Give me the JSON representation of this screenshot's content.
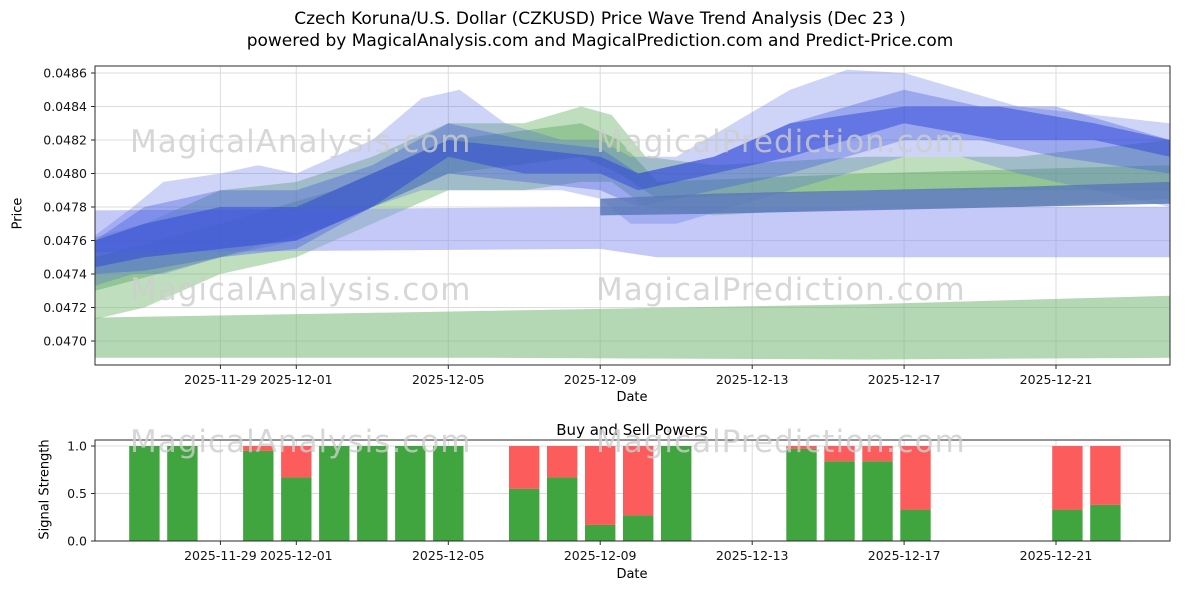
{
  "title": "Czech Koruna/U.S. Dollar (CZKUSD) Price Wave Trend Analysis (Dec 23 )",
  "subtitle": "powered by MagicalAnalysis.com and MagicalPrediction.com and Predict-Price.com",
  "watermarks": [
    "MagicalAnalysis.com",
    "MagicalPrediction.com"
  ],
  "colors": {
    "buy": "#41a53f",
    "sell": "#fd5c5c",
    "grid": "#dcdcdc",
    "frame": "#2a2a2a",
    "watermark": "#cdcdcd"
  },
  "chart_data": [
    {
      "type": "area",
      "title": "",
      "xlabel": "Date",
      "ylabel": "Price",
      "x_domain": [
        -0.3,
        28
      ],
      "ylim": [
        0.046857,
        0.048642
      ],
      "yticks": [
        {
          "v": 0.047,
          "label": "0.0470"
        },
        {
          "v": 0.0472,
          "label": "0.0472"
        },
        {
          "v": 0.0474,
          "label": "0.0474"
        },
        {
          "v": 0.0476,
          "label": "0.0476"
        },
        {
          "v": 0.0478,
          "label": "0.0478"
        },
        {
          "v": 0.048,
          "label": "0.0480"
        },
        {
          "v": 0.0482,
          "label": "0.0482"
        },
        {
          "v": 0.0484,
          "label": "0.0484"
        },
        {
          "v": 0.0486,
          "label": "0.0486"
        }
      ],
      "xticks": [
        {
          "day": 3,
          "label": "2025-11-29"
        },
        {
          "day": 5,
          "label": "2025-12-01"
        },
        {
          "day": 9,
          "label": "2025-12-05"
        },
        {
          "day": 13,
          "label": "2025-12-09"
        },
        {
          "day": 17,
          "label": "2025-12-13"
        },
        {
          "day": 21,
          "label": "2025-12-17"
        },
        {
          "day": 25,
          "label": "2025-12-21"
        }
      ],
      "bands": [
        {
          "name": "green-flat-low",
          "color": "#74b874",
          "opacity": 0.55,
          "points": [
            [
              -0.3,
              0.0469,
              0.04714
            ],
            [
              10,
              0.0469,
              0.04718
            ],
            [
              20,
              0.04689,
              0.04722
            ],
            [
              28,
              0.0469,
              0.04727
            ]
          ]
        },
        {
          "name": "green-trend-wide",
          "color": "#6fb56f",
          "opacity": 0.45,
          "points": [
            [
              -0.3,
              0.04713,
              0.04762
            ],
            [
              1,
              0.0472,
              0.0477
            ],
            [
              3,
              0.0474,
              0.0479
            ],
            [
              5,
              0.0475,
              0.04795
            ],
            [
              7,
              0.0477,
              0.0481
            ],
            [
              9,
              0.0479,
              0.0483
            ],
            [
              11,
              0.0479,
              0.0483
            ],
            [
              12.5,
              0.04795,
              0.0484
            ],
            [
              13.3,
              0.04795,
              0.04835
            ],
            [
              14.2,
              0.0478,
              0.0481
            ],
            [
              16,
              0.04775,
              0.04805
            ],
            [
              20,
              0.0478,
              0.0481
            ],
            [
              24,
              0.0478,
              0.0481
            ],
            [
              28,
              0.04785,
              0.0482
            ]
          ]
        },
        {
          "name": "green-trend-inner",
          "color": "#55a055",
          "opacity": 0.4,
          "points": [
            [
              -0.3,
              0.0473,
              0.0475
            ],
            [
              3,
              0.0475,
              0.0477
            ],
            [
              6,
              0.0477,
              0.0479
            ],
            [
              9,
              0.048,
              0.0482
            ],
            [
              12.5,
              0.0481,
              0.0483
            ],
            [
              13.5,
              0.048,
              0.0482
            ],
            [
              14.5,
              0.04785,
              0.04795
            ],
            [
              20,
              0.0479,
              0.048
            ],
            [
              28,
              0.0479,
              0.04805
            ]
          ]
        },
        {
          "name": "periwinkle-flat",
          "color": "#8a93ef",
          "opacity": 0.5,
          "points": [
            [
              -0.3,
              0.04753,
              0.04778
            ],
            [
              13,
              0.04755,
              0.0478
            ],
            [
              14.5,
              0.0475,
              0.0478
            ],
            [
              28,
              0.0475,
              0.0478
            ]
          ]
        },
        {
          "name": "blue-outer",
          "color": "#4f64e2",
          "opacity": 0.28,
          "points": [
            [
              -0.3,
              0.04733,
              0.04763
            ],
            [
              0.7,
              0.0474,
              0.0478
            ],
            [
              1.5,
              0.0474,
              0.04795
            ],
            [
              3,
              0.0475,
              0.048
            ],
            [
              4,
              0.04755,
              0.04805
            ],
            [
              5,
              0.0476,
              0.048
            ],
            [
              7,
              0.0478,
              0.0482
            ],
            [
              8.3,
              0.0479,
              0.04845
            ],
            [
              9.3,
              0.0479,
              0.0485
            ],
            [
              10.5,
              0.0479,
              0.0483
            ],
            [
              12,
              0.0479,
              0.0482
            ],
            [
              13,
              0.04785,
              0.0482
            ],
            [
              13.8,
              0.0477,
              0.0481
            ],
            [
              15,
              0.0477,
              0.0481
            ],
            [
              16.5,
              0.0478,
              0.0483
            ],
            [
              18,
              0.0479,
              0.0485
            ],
            [
              19.5,
              0.048,
              0.04862
            ],
            [
              21,
              0.0481,
              0.0486
            ],
            [
              22.5,
              0.0481,
              0.0485
            ],
            [
              24,
              0.048,
              0.0484
            ],
            [
              26,
              0.0479,
              0.04835
            ],
            [
              28,
              0.0478,
              0.0483
            ]
          ]
        },
        {
          "name": "blue-mid",
          "color": "#3c55de",
          "opacity": 0.35,
          "points": [
            [
              -0.3,
              0.0474,
              0.0476
            ],
            [
              1,
              0.04742,
              0.0478
            ],
            [
              3,
              0.0475,
              0.0479
            ],
            [
              5,
              0.04755,
              0.0479
            ],
            [
              7,
              0.0478,
              0.04805
            ],
            [
              9,
              0.048,
              0.0483
            ],
            [
              11,
              0.04795,
              0.0482
            ],
            [
              13,
              0.0479,
              0.04815
            ],
            [
              14,
              0.0478,
              0.048
            ],
            [
              16,
              0.0479,
              0.0481
            ],
            [
              18,
              0.048,
              0.0483
            ],
            [
              21,
              0.0482,
              0.0485
            ],
            [
              23,
              0.0482,
              0.0484
            ],
            [
              25,
              0.0481,
              0.0484
            ],
            [
              28,
              0.048,
              0.0482
            ]
          ]
        },
        {
          "name": "blue-core",
          "color": "#2b44d8",
          "opacity": 0.5,
          "points": [
            [
              -0.3,
              0.04744,
              0.0476
            ],
            [
              1,
              0.0475,
              0.0477
            ],
            [
              3,
              0.04755,
              0.0478
            ],
            [
              5,
              0.0476,
              0.0478
            ],
            [
              7,
              0.0478,
              0.048
            ],
            [
              9,
              0.0481,
              0.0482
            ],
            [
              11,
              0.048,
              0.04815
            ],
            [
              13,
              0.048,
              0.0481
            ],
            [
              14,
              0.0479,
              0.048
            ],
            [
              16,
              0.048,
              0.0481
            ],
            [
              18,
              0.0481,
              0.0483
            ],
            [
              21,
              0.0483,
              0.0484
            ],
            [
              23.5,
              0.0482,
              0.0484
            ],
            [
              26,
              0.0482,
              0.0483
            ],
            [
              28,
              0.0481,
              0.0482
            ]
          ]
        },
        {
          "name": "steelblue-line",
          "color": "#5b79b8",
          "opacity": 0.85,
          "points": [
            [
              13,
              0.04775,
              0.04785
            ],
            [
              16,
              0.04776,
              0.04788
            ],
            [
              20,
              0.04778,
              0.0479
            ],
            [
              24,
              0.0478,
              0.04792
            ],
            [
              28,
              0.04782,
              0.04795
            ]
          ]
        }
      ]
    },
    {
      "type": "bar",
      "title": "Buy and Sell Powers",
      "xlabel": "Date",
      "ylabel": "Signal Strength",
      "x_domain": [
        -0.3,
        28
      ],
      "ylim": [
        0,
        1.063
      ],
      "bar_width_days": 0.8,
      "yticks": [
        {
          "v": 0.0,
          "label": "0.0"
        },
        {
          "v": 0.5,
          "label": "0.5"
        },
        {
          "v": 1.0,
          "label": "1.0"
        }
      ],
      "xticks": [
        {
          "day": 3,
          "label": "2025-11-29"
        },
        {
          "day": 5,
          "label": "2025-12-01"
        },
        {
          "day": 9,
          "label": "2025-12-05"
        },
        {
          "day": 13,
          "label": "2025-12-09"
        },
        {
          "day": 17,
          "label": "2025-12-13"
        },
        {
          "day": 21,
          "label": "2025-12-17"
        },
        {
          "day": 25,
          "label": "2025-12-21"
        }
      ],
      "bars": [
        {
          "date": "2025-11-27",
          "day": 1,
          "buy": 1.0,
          "sell": 0.0
        },
        {
          "date": "2025-11-28",
          "day": 2,
          "buy": 1.0,
          "sell": 0.0
        },
        {
          "date": "2025-11-30",
          "day": 4,
          "buy": 0.95,
          "sell": 0.05
        },
        {
          "date": "2025-12-01",
          "day": 5,
          "buy": 0.67,
          "sell": 0.33
        },
        {
          "date": "2025-12-02",
          "day": 6,
          "buy": 1.0,
          "sell": 0.0
        },
        {
          "date": "2025-12-03",
          "day": 7,
          "buy": 1.0,
          "sell": 0.0
        },
        {
          "date": "2025-12-04",
          "day": 8,
          "buy": 1.0,
          "sell": 0.0
        },
        {
          "date": "2025-12-05",
          "day": 9,
          "buy": 1.0,
          "sell": 0.0
        },
        {
          "date": "2025-12-07",
          "day": 11,
          "buy": 0.55,
          "sell": 0.45
        },
        {
          "date": "2025-12-08",
          "day": 12,
          "buy": 0.67,
          "sell": 0.33
        },
        {
          "date": "2025-12-09",
          "day": 13,
          "buy": 0.17,
          "sell": 0.83
        },
        {
          "date": "2025-12-10",
          "day": 14,
          "buy": 0.27,
          "sell": 0.73
        },
        {
          "date": "2025-12-11",
          "day": 15,
          "buy": 1.0,
          "sell": 0.0
        },
        {
          "date": "2025-12-14",
          "day": 18.3,
          "buy": 0.97,
          "sell": 0.03
        },
        {
          "date": "2025-12-15",
          "day": 19.3,
          "buy": 0.84,
          "sell": 0.16
        },
        {
          "date": "2025-12-16",
          "day": 20.3,
          "buy": 0.84,
          "sell": 0.16
        },
        {
          "date": "2025-12-17",
          "day": 21.3,
          "buy": 0.33,
          "sell": 0.67
        },
        {
          "date": "2025-12-21",
          "day": 25.3,
          "buy": 0.33,
          "sell": 0.67
        },
        {
          "date": "2025-12-22",
          "day": 26.3,
          "buy": 0.38,
          "sell": 0.62
        }
      ]
    }
  ]
}
